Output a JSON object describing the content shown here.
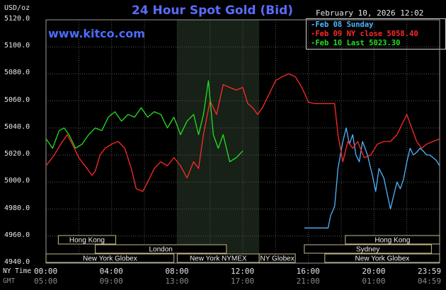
{
  "chart_data": {
    "type": "line",
    "title": "24 Hour Spot Gold (Bid)",
    "brand": "www.kitco.com",
    "ylabel": "USD/oz",
    "datetime": "February 10, 2026 12:02",
    "ylim": [
      4940,
      5120
    ],
    "yticks": [
      "5120.0",
      "5100.0",
      "5080.0",
      "5060.0",
      "5040.0",
      "5020.0",
      "5000.0",
      "4980.0",
      "4960.0",
      "4940.0"
    ],
    "x_row_labels": {
      "ny": "NY Time",
      "gmt": "GMT"
    },
    "xticks_ny": [
      "00:00",
      "04:00",
      "08:00",
      "12:00",
      "16:00",
      "20:00",
      "23:59"
    ],
    "xticks_gmt": [
      "05:00",
      "09:00",
      "13:00",
      "17:00",
      "21:00",
      "01:00",
      "04:59"
    ],
    "xlim_hours": [
      0,
      24
    ],
    "highlight_hours": [
      8.0,
      13.0
    ],
    "sessions": [
      {
        "name": "Hong Kong",
        "row": 0,
        "start": 0.75,
        "end": 4.25
      },
      {
        "name": "Hong Kong",
        "row": 0,
        "start": 18.25,
        "end": 24.0
      },
      {
        "name": "London",
        "row": 1,
        "start": 3.0,
        "end": 11.0
      },
      {
        "name": "Sydney",
        "row": 1,
        "start": 15.75,
        "end": 23.5
      },
      {
        "name": "New York Globex",
        "row": 2,
        "start": 0.0,
        "end": 7.8
      },
      {
        "name": "New York NYMEX",
        "row": 2,
        "start": 8.0,
        "end": 13.0
      },
      {
        "name": "NY Globex",
        "row": 2,
        "start": 13.0,
        "end": 15.2
      },
      {
        "name": "New York Globex",
        "row": 2,
        "start": 17.0,
        "end": 24.0
      }
    ],
    "series": [
      {
        "name": "Feb 08 Sunday",
        "color": "#4fb6ff",
        "legend": "Feb 08 Sunday",
        "x": [
          15.75,
          16.9,
          16.95,
          17.2,
          17.35,
          17.6,
          17.8,
          18.1,
          18.3,
          18.5,
          18.7,
          18.9,
          19.1,
          19.3,
          19.6,
          19.9,
          20.1,
          20.3,
          20.6,
          21.0,
          21.2,
          21.4,
          21.6,
          21.8,
          22.0,
          22.2,
          22.4,
          22.6,
          22.8,
          23.0,
          23.2,
          23.4,
          23.6,
          23.8,
          24.0
        ],
        "y": [
          4966,
          4966,
          4966,
          4966,
          4975,
          4982,
          5010,
          5030,
          5040,
          5028,
          5035,
          5020,
          5015,
          5030,
          5020,
          5005,
          4993,
          5010,
          5003,
          4980,
          4990,
          5000,
          4995,
          5002,
          5015,
          5025,
          5020,
          5022,
          5025,
          5023,
          5020,
          5020,
          5018,
          5016,
          5012
        ]
      },
      {
        "name": "Feb 09 NY close 5058.40",
        "color": "#ff2a2a",
        "legend": "Feb 09 NY close 5058.40",
        "x": [
          0.0,
          0.5,
          1.0,
          1.3,
          1.6,
          2.0,
          2.5,
          2.8,
          3.0,
          3.3,
          3.6,
          4.0,
          4.4,
          4.8,
          5.2,
          5.5,
          5.9,
          6.2,
          6.6,
          7.0,
          7.4,
          7.8,
          8.2,
          8.6,
          9.0,
          9.3,
          9.6,
          10.0,
          10.4,
          10.8,
          11.2,
          11.6,
          12.0,
          12.3,
          12.6,
          12.9,
          13.2,
          13.6,
          14.0,
          14.4,
          14.8,
          15.2,
          15.6,
          16.0,
          16.4,
          16.8,
          17.2,
          17.6,
          17.8,
          18.1,
          18.4,
          18.7,
          19.0,
          19.4,
          19.8,
          20.2,
          20.6,
          21.0,
          21.4,
          21.8,
          22.0,
          22.3,
          22.6,
          22.9,
          23.2,
          23.6,
          24.0
        ],
        "y": [
          5012,
          5020,
          5030,
          5035,
          5028,
          5018,
          5010,
          5005,
          5008,
          5020,
          5025,
          5028,
          5030,
          5025,
          5010,
          4995,
          4993,
          5000,
          5010,
          5015,
          5012,
          5018,
          5012,
          5003,
          5015,
          5010,
          5035,
          5060,
          5050,
          5072,
          5070,
          5068,
          5070,
          5058,
          5055,
          5050,
          5055,
          5065,
          5075,
          5078,
          5080,
          5078,
          5070,
          5059,
          5058,
          5058,
          5058,
          5058,
          5035,
          5015,
          5030,
          5025,
          5030,
          5018,
          5020,
          5028,
          5030,
          5030,
          5035,
          5045,
          5050,
          5040,
          5030,
          5025,
          5028,
          5030,
          5032
        ]
      },
      {
        "name": "Feb 10 Last 5023.30",
        "color": "#22e022",
        "legend": "Feb 10 Last 5023.30",
        "x": [
          0.0,
          0.4,
          0.8,
          1.1,
          1.4,
          1.8,
          2.2,
          2.6,
          3.0,
          3.4,
          3.8,
          4.2,
          4.6,
          5.0,
          5.4,
          5.8,
          6.2,
          6.6,
          7.0,
          7.4,
          7.8,
          8.2,
          8.6,
          9.0,
          9.3,
          9.6,
          9.9,
          10.2,
          10.5,
          10.8,
          11.2,
          11.6,
          12.0
        ],
        "y": [
          5032,
          5025,
          5038,
          5040,
          5035,
          5025,
          5028,
          5035,
          5040,
          5038,
          5048,
          5052,
          5045,
          5050,
          5048,
          5055,
          5048,
          5052,
          5050,
          5040,
          5048,
          5035,
          5045,
          5050,
          5035,
          5050,
          5075,
          5035,
          5025,
          5035,
          5015,
          5018,
          5023
        ]
      }
    ]
  }
}
